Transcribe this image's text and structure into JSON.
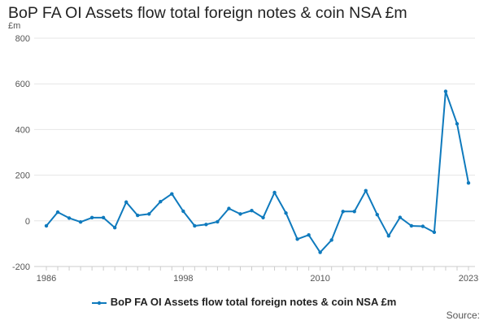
{
  "chart_data": {
    "type": "line",
    "title": "BoP FA OI Assets flow total foreign notes & coin NSA £m",
    "ylabel": "£m",
    "xlabel": "",
    "ylim": [
      -200,
      800
    ],
    "yticks": [
      -200,
      0,
      200,
      400,
      600,
      800
    ],
    "xlim": [
      1986,
      2023
    ],
    "xticks": [
      1986,
      1998,
      2010,
      2023
    ],
    "grid": true,
    "legend": "bottom",
    "color": "#0f7abd",
    "series": [
      {
        "name": "BoP FA OI Assets flow total foreign notes & coin NSA £m",
        "x": [
          1986,
          1987,
          1988,
          1989,
          1990,
          1991,
          1992,
          1993,
          1994,
          1995,
          1996,
          1997,
          1998,
          1999,
          2000,
          2001,
          2002,
          2003,
          2004,
          2005,
          2006,
          2007,
          2008,
          2009,
          2010,
          2011,
          2012,
          2013,
          2014,
          2015,
          2016,
          2017,
          2018,
          2019,
          2020,
          2021,
          2022,
          2023
        ],
        "values": [
          -22,
          38,
          12,
          -5,
          14,
          14,
          -30,
          82,
          24,
          30,
          84,
          118,
          42,
          -22,
          -16,
          -4,
          54,
          30,
          45,
          14,
          124,
          34,
          -80,
          -62,
          -138,
          -84,
          41,
          41,
          132,
          27,
          -66,
          15,
          -22,
          -24,
          -50,
          567,
          425,
          166
        ]
      }
    ]
  },
  "legend_label": "BoP FA OI Assets flow total foreign notes & coin NSA £m",
  "source_label": "Source:"
}
